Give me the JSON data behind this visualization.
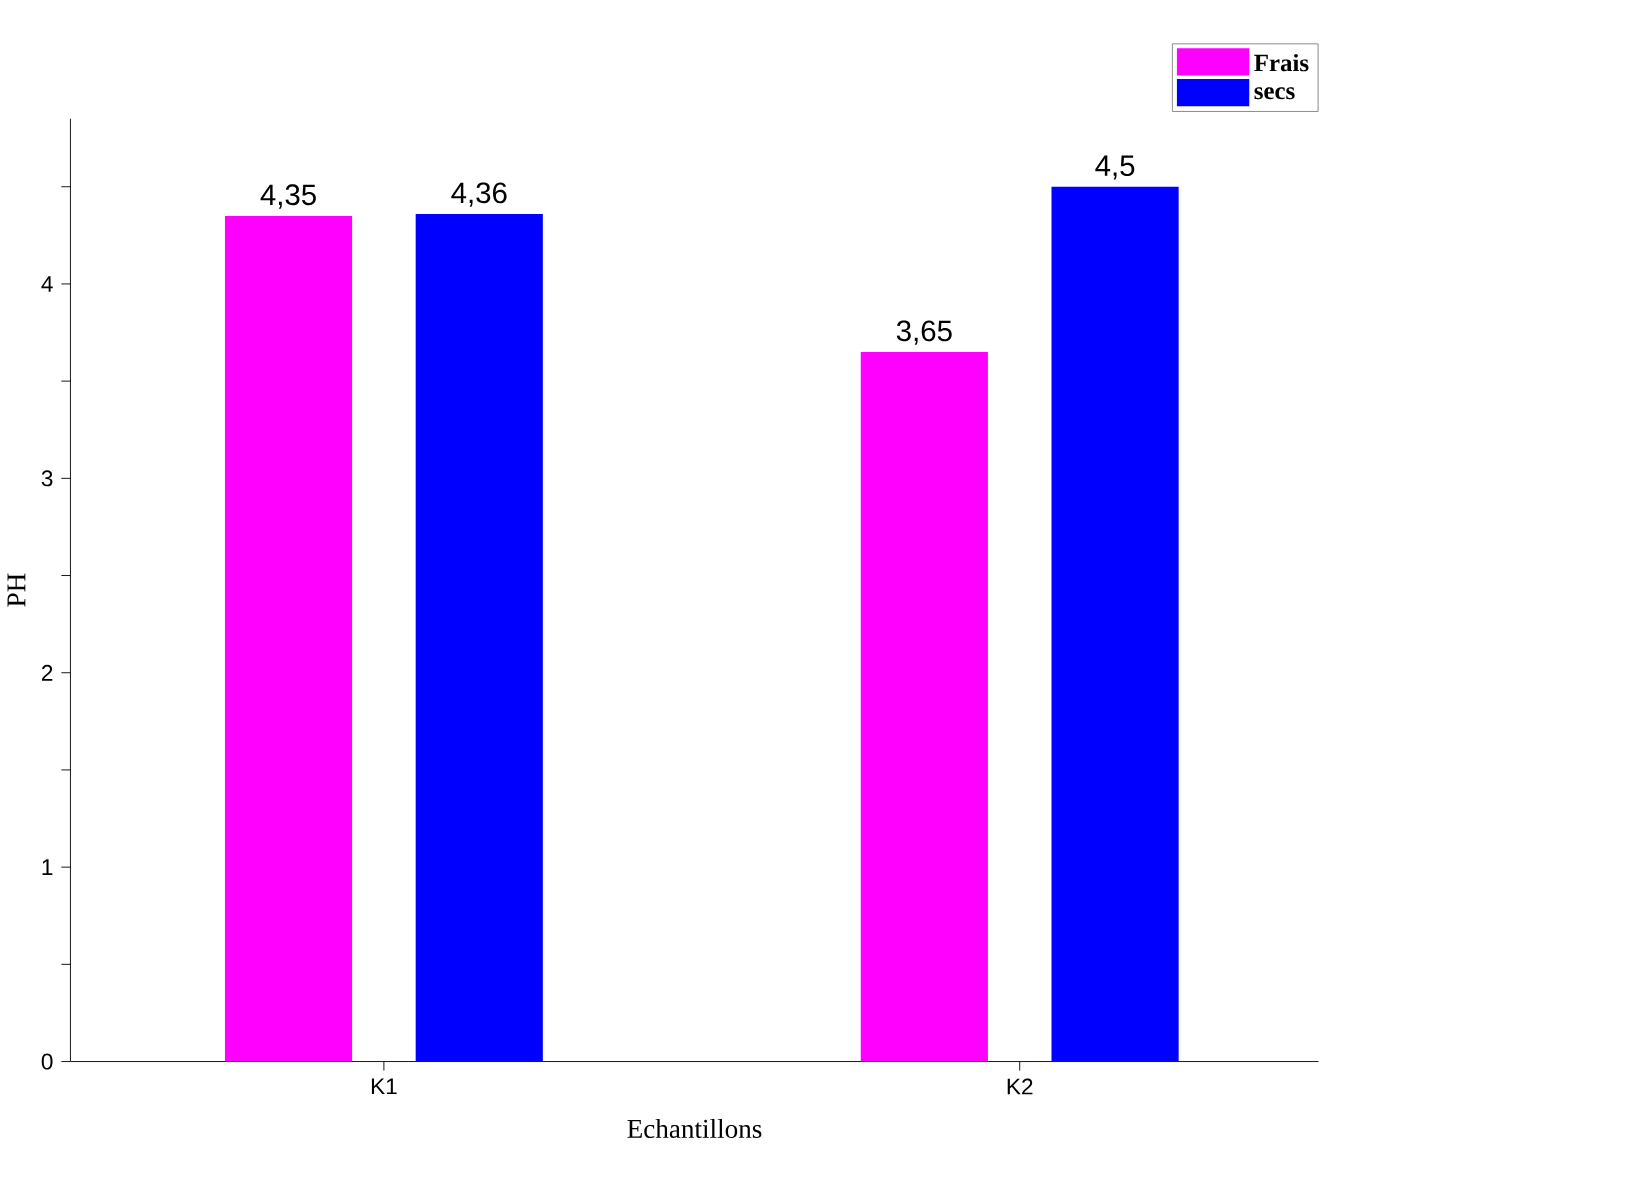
{
  "chart_data": {
    "type": "bar",
    "xlabel": "Echantillons",
    "ylabel": "PH",
    "categories": [
      "K1",
      "K2"
    ],
    "series": [
      {
        "name": "Frais",
        "color": "#ff00ff",
        "values": [
          4.35,
          3.65
        ],
        "value_labels": [
          "4,35",
          "3,65"
        ]
      },
      {
        "name": "secs",
        "color": "#0000ff",
        "values": [
          4.36,
          4.5
        ],
        "value_labels": [
          "4,36",
          "4,5"
        ]
      }
    ],
    "ylim": [
      0,
      4.85
    ],
    "yticks": [
      0,
      {
        "value": 0.5,
        "label": null
      },
      1,
      {
        "value": 1.5,
        "label": null
      },
      2,
      {
        "value": 2.5,
        "label": null
      },
      3,
      {
        "value": 3.5,
        "label": null
      },
      4,
      {
        "value": 4.5,
        "label": null
      }
    ],
    "legend": "top right",
    "grid": false
  }
}
